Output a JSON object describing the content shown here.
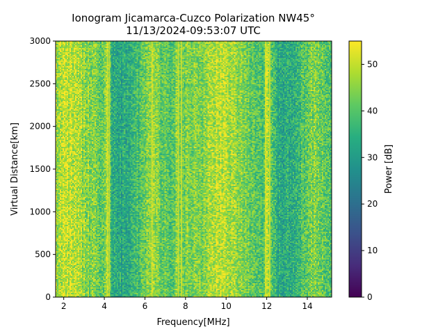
{
  "chart_data": {
    "type": "heatmap",
    "title_line1": "Ionogram Jicamarca-Cuzco Polarization NW45°",
    "title_line2": "11/13/2024-09:53:07 UTC",
    "xlabel": "Frequency[MHz]",
    "ylabel": "Virtual Distance[km]",
    "xlim": [
      1.6,
      15.2
    ],
    "ylim": [
      0,
      3000
    ],
    "xticks": [
      2,
      4,
      6,
      8,
      10,
      12,
      14
    ],
    "yticks": [
      0,
      500,
      1000,
      1500,
      2000,
      2500,
      3000
    ],
    "colorbar": {
      "label": "Power [dB]",
      "range": [
        0,
        55
      ],
      "ticks": [
        0,
        10,
        20,
        30,
        40,
        50
      ],
      "colormap": "viridis"
    },
    "freq_profile_mhz": [
      1.6,
      2.0,
      2.6,
      3.0,
      3.3,
      3.7,
      4.0,
      4.15,
      4.25,
      4.4,
      4.8,
      5.2,
      5.6,
      5.9,
      6.3,
      6.6,
      7.0,
      7.4,
      7.6,
      7.85,
      8.2,
      8.7,
      9.2,
      9.7,
      10.2,
      10.6,
      11.0,
      11.4,
      11.8,
      12.0,
      12.3,
      12.6,
      13.0,
      13.4,
      13.8,
      14.1,
      14.5,
      14.8,
      15.2
    ],
    "mean_power_db": [
      46,
      50,
      49,
      46,
      44,
      42,
      40,
      50,
      41,
      34,
      33,
      34,
      37,
      40,
      46,
      44,
      41,
      40,
      46,
      43,
      44,
      45,
      47,
      50,
      48,
      45,
      43,
      41,
      39,
      50,
      37,
      33,
      34,
      36,
      40,
      45,
      44,
      41,
      40
    ],
    "narrow_lines_mhz": [
      4.15,
      4.25,
      6.35,
      7.65,
      7.8,
      11.95,
      12.15
    ]
  }
}
